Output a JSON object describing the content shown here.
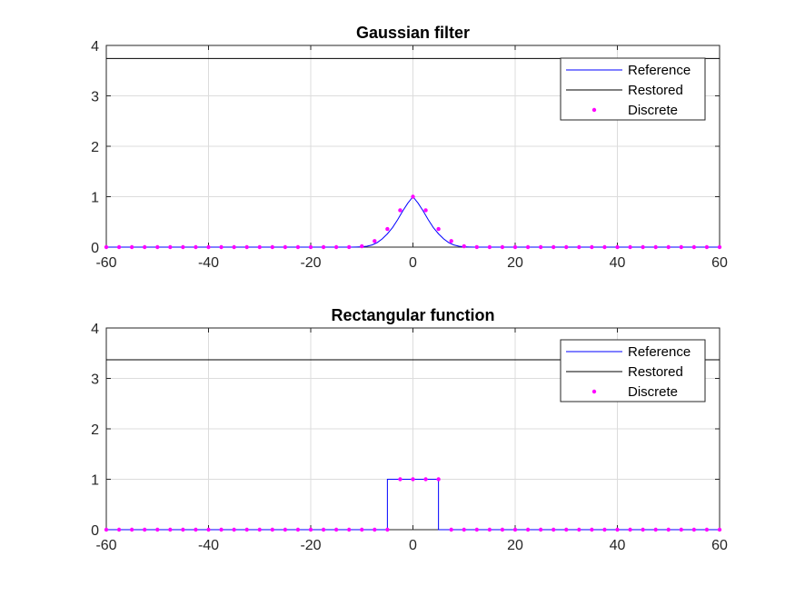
{
  "colors": {
    "reference": "#0000ff",
    "restored": "#000000",
    "discrete": "#ff00ff",
    "grid": "#dcdcdc",
    "axis": "#262626"
  },
  "chart_data": [
    {
      "type": "line",
      "title": "Gaussian filter",
      "xlabel": "",
      "ylabel": "",
      "xlim": [
        -60,
        60
      ],
      "ylim": [
        0,
        4
      ],
      "xticks": [
        -60,
        -40,
        -20,
        0,
        20,
        40,
        60
      ],
      "yticks": [
        0,
        1,
        2,
        3,
        4
      ],
      "grid": true,
      "legend_location": "top-right",
      "series": [
        {
          "name": "Reference",
          "style": "line",
          "color": "#0000ff",
          "x": [
            -60,
            -12,
            -11,
            -10,
            -9,
            -8,
            -7,
            -6,
            -5,
            -4,
            -3,
            -2,
            -1,
            0,
            1,
            2,
            3,
            4,
            5,
            6,
            7,
            8,
            9,
            10,
            11,
            12,
            60
          ],
          "y": [
            0,
            0,
            0.002,
            0.006,
            0.018,
            0.043,
            0.089,
            0.164,
            0.264,
            0.387,
            0.543,
            0.716,
            0.873,
            1.0,
            0.873,
            0.716,
            0.543,
            0.387,
            0.264,
            0.164,
            0.089,
            0.043,
            0.018,
            0.006,
            0.002,
            0,
            0
          ]
        },
        {
          "name": "Restored",
          "style": "line",
          "color": "#000000",
          "x": [
            -60,
            60
          ],
          "y": [
            3.74,
            3.74
          ]
        },
        {
          "name": "Discrete",
          "style": "points",
          "color": "#ff00ff",
          "x": [
            -60,
            -57.5,
            -55,
            -52.5,
            -50,
            -47.5,
            -45,
            -42.5,
            -40,
            -37.5,
            -35,
            -32.5,
            -30,
            -27.5,
            -25,
            -22.5,
            -20,
            -17.5,
            -15,
            -12.5,
            -10,
            -7.5,
            -5,
            -2.5,
            0,
            2.5,
            5,
            7.5,
            10,
            12.5,
            15,
            17.5,
            20,
            22.5,
            25,
            27.5,
            30,
            32.5,
            35,
            37.5,
            40,
            42.5,
            45,
            47.5,
            50,
            52.5,
            55,
            57.5,
            60
          ],
          "y": [
            0,
            0,
            0,
            0,
            0,
            0,
            0,
            0,
            0,
            0,
            0,
            0,
            0,
            0,
            0,
            0,
            0,
            0,
            0,
            0.002,
            0.017,
            0.12,
            0.36,
            0.73,
            1.0,
            0.73,
            0.36,
            0.12,
            0.017,
            0.002,
            0,
            0,
            0,
            0,
            0,
            0,
            0,
            0,
            0,
            0,
            0,
            0,
            0,
            0,
            0,
            0,
            0,
            0,
            0
          ]
        }
      ]
    },
    {
      "type": "line",
      "title": "Rectangular function",
      "xlabel": "",
      "ylabel": "",
      "xlim": [
        -60,
        60
      ],
      "ylim": [
        0,
        4
      ],
      "xticks": [
        -60,
        -40,
        -20,
        0,
        20,
        40,
        60
      ],
      "yticks": [
        0,
        1,
        2,
        3,
        4
      ],
      "grid": true,
      "legend_location": "top-right",
      "series": [
        {
          "name": "Reference",
          "style": "line",
          "color": "#0000ff",
          "x": [
            -60,
            -5,
            -5,
            5,
            5,
            60
          ],
          "y": [
            0,
            0,
            1,
            1,
            0,
            0
          ]
        },
        {
          "name": "Restored",
          "style": "line",
          "color": "#000000",
          "x": [
            -60,
            60
          ],
          "y": [
            3.37,
            3.37
          ]
        },
        {
          "name": "Discrete",
          "style": "points",
          "color": "#ff00ff",
          "x": [
            -60,
            -57.5,
            -55,
            -52.5,
            -50,
            -47.5,
            -45,
            -42.5,
            -40,
            -37.5,
            -35,
            -32.5,
            -30,
            -27.5,
            -25,
            -22.5,
            -20,
            -17.5,
            -15,
            -12.5,
            -10,
            -7.5,
            -5,
            -2.5,
            0,
            2.5,
            5,
            7.5,
            10,
            12.5,
            15,
            17.5,
            20,
            22.5,
            25,
            27.5,
            30,
            32.5,
            35,
            37.5,
            40,
            42.5,
            45,
            47.5,
            50,
            52.5,
            55,
            57.5,
            60
          ],
          "y": [
            0,
            0,
            0,
            0,
            0,
            0,
            0,
            0,
            0,
            0,
            0,
            0,
            0,
            0,
            0,
            0,
            0,
            0,
            0,
            0,
            0,
            0,
            0,
            1,
            1,
            1,
            1,
            0,
            0,
            0,
            0,
            0,
            0,
            0,
            0,
            0,
            0,
            0,
            0,
            0,
            0,
            0,
            0,
            0,
            0,
            0,
            0,
            0,
            0
          ]
        }
      ]
    }
  ]
}
